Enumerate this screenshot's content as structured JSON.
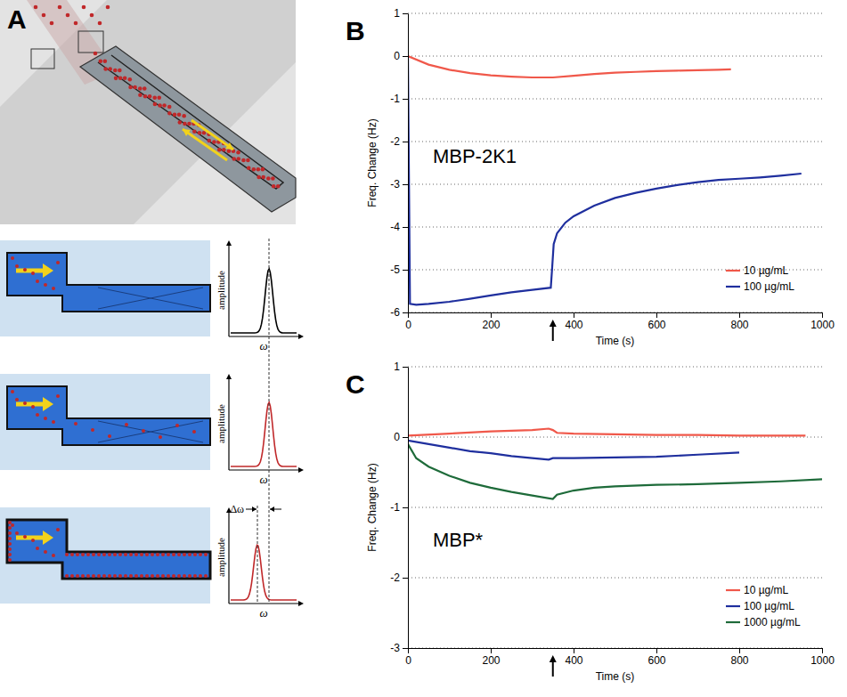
{
  "diagram": {
    "panel": "A",
    "y_label": "amplitude",
    "x_label": "ω",
    "shift_label": "Δω"
  },
  "chart_data": [
    {
      "type": "line",
      "panel": "B",
      "title": "MBP-2K1",
      "x_label": "Time (s)",
      "y_label": "Freq. Change (Hz)",
      "xlim": [
        0,
        1000
      ],
      "xticks": [
        0,
        200,
        400,
        600,
        800,
        1000
      ],
      "ylim": [
        -6,
        1
      ],
      "yticks": [
        -6,
        -5,
        -4,
        -3,
        -2,
        -1,
        0,
        1
      ],
      "grid": true,
      "legend": "lower right",
      "arrow_x": 350,
      "series": [
        {
          "name": "10 µg/mL",
          "color": "#f0584a",
          "x": [
            0,
            50,
            100,
            150,
            200,
            250,
            300,
            350,
            400,
            450,
            500,
            550,
            600,
            650,
            700,
            750,
            780
          ],
          "values": [
            0,
            -0.2,
            -0.32,
            -0.4,
            -0.45,
            -0.48,
            -0.5,
            -0.5,
            -0.46,
            -0.42,
            -0.39,
            -0.37,
            -0.35,
            -0.34,
            -0.33,
            -0.32,
            -0.31
          ]
        },
        {
          "name": "100 µg/mL",
          "color": "#1f2f9e",
          "x": [
            0,
            5,
            20,
            50,
            100,
            150,
            200,
            250,
            300,
            345,
            348,
            352,
            360,
            380,
            400,
            450,
            500,
            550,
            600,
            650,
            700,
            750,
            800,
            850,
            900,
            950
          ],
          "values": [
            0,
            -5.8,
            -5.82,
            -5.8,
            -5.75,
            -5.68,
            -5.6,
            -5.53,
            -5.47,
            -5.42,
            -5.0,
            -4.4,
            -4.15,
            -3.9,
            -3.75,
            -3.5,
            -3.32,
            -3.2,
            -3.1,
            -3.02,
            -2.95,
            -2.9,
            -2.87,
            -2.84,
            -2.8,
            -2.75
          ]
        }
      ]
    },
    {
      "type": "line",
      "panel": "C",
      "title": "MBP*",
      "x_label": "Time (s)",
      "y_label": "Freq. Change (Hz)",
      "xlim": [
        0,
        1000
      ],
      "xticks": [
        0,
        200,
        400,
        600,
        800,
        1000
      ],
      "ylim": [
        -3,
        1
      ],
      "yticks": [
        -3,
        -2,
        -1,
        0,
        1
      ],
      "grid": true,
      "legend": "lower right",
      "arrow_x": 350,
      "series": [
        {
          "name": "10 µg/mL",
          "color": "#f0584a",
          "x": [
            0,
            100,
            200,
            300,
            340,
            350,
            360,
            400,
            500,
            600,
            700,
            800,
            900,
            960
          ],
          "values": [
            0.02,
            0.05,
            0.08,
            0.1,
            0.12,
            0.1,
            0.06,
            0.05,
            0.04,
            0.03,
            0.03,
            0.02,
            0.02,
            0.02
          ]
        },
        {
          "name": "100 µg/mL",
          "color": "#1f2f9e",
          "x": [
            0,
            50,
            100,
            150,
            200,
            250,
            300,
            340,
            350,
            400,
            500,
            600,
            700,
            800
          ],
          "values": [
            -0.05,
            -0.1,
            -0.15,
            -0.2,
            -0.23,
            -0.27,
            -0.3,
            -0.32,
            -0.3,
            -0.3,
            -0.29,
            -0.28,
            -0.25,
            -0.22
          ]
        },
        {
          "name": "1000 µg/mL",
          "color": "#1e6b3a",
          "x": [
            0,
            20,
            50,
            100,
            150,
            200,
            250,
            300,
            350,
            360,
            400,
            450,
            500,
            600,
            700,
            800,
            900,
            1000
          ],
          "values": [
            -0.1,
            -0.3,
            -0.42,
            -0.55,
            -0.65,
            -0.72,
            -0.78,
            -0.83,
            -0.88,
            -0.82,
            -0.76,
            -0.72,
            -0.7,
            -0.68,
            -0.67,
            -0.65,
            -0.63,
            -0.6
          ]
        }
      ]
    }
  ]
}
